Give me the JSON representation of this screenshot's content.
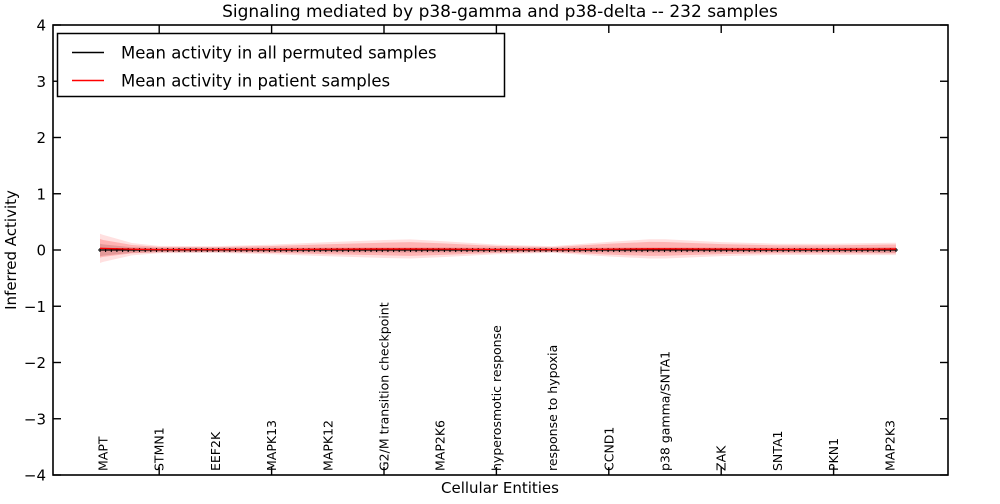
{
  "chart_data": {
    "type": "line",
    "title": "Signaling mediated by p38-gamma and p38-delta -- 232 samples",
    "xlabel": "Cellular Entities",
    "ylabel": "Inferred Activity",
    "ylim": [
      -4,
      4
    ],
    "yticks": [
      4,
      3,
      2,
      1,
      0,
      -1,
      -2,
      -3,
      -4
    ],
    "ytick_labels": [
      "4",
      "3",
      "2",
      "1",
      "0",
      "−1",
      "−2",
      "−3",
      "−4"
    ],
    "categories": [
      "MAPT",
      "STMN1",
      "EEF2K",
      "MAPK13",
      "MAPK12",
      "G2/M transition checkpoint",
      "MAP2K6",
      "hyperosmotic response",
      "response to hypoxia",
      "CCND1",
      "p38 gamma/SNTA1",
      "ZAK",
      "SNTA1",
      "PKN1",
      "MAP2K3"
    ],
    "legend": {
      "position": "upper-left",
      "entries": [
        {
          "label": "Mean activity in all permuted samples",
          "color": "#000000"
        },
        {
          "label": "Mean activity in patient samples",
          "color": "#ff0000"
        }
      ]
    },
    "grid": false,
    "n_points": 142,
    "marker": "plus",
    "series": [
      {
        "name": "Mean activity in all permuted samples",
        "color": "#000000",
        "approx_mean_activity": 0.0
      },
      {
        "name": "Mean activity in patient samples",
        "color": "#ff0000",
        "approx_mean_activity": 0.02
      }
    ],
    "band_profile": {
      "comment": "t = fraction along x data range; halfwidths and means in Inferred Activity units",
      "t": [
        0.0,
        0.004,
        0.04,
        0.074,
        0.144,
        0.216,
        0.286,
        0.357,
        0.39,
        0.427,
        0.499,
        0.569,
        0.639,
        0.69,
        0.71,
        0.781,
        0.852,
        0.922,
        0.992,
        1.0
      ],
      "black_mean": [
        0,
        0,
        0,
        0,
        0,
        0,
        0,
        0,
        0,
        0,
        0,
        0,
        0,
        0,
        0,
        0,
        0,
        0,
        0,
        0
      ],
      "red_mean": [
        0.03,
        0.028,
        0.015,
        0.008,
        0.008,
        0.01,
        0.014,
        0.018,
        0.018,
        0.016,
        0.01,
        0.008,
        0.014,
        0.02,
        0.02,
        0.016,
        0.012,
        0.012,
        0.018,
        0.018
      ],
      "red_halfwidth": [
        0.165,
        0.15,
        0.075,
        0.047,
        0.044,
        0.062,
        0.089,
        0.113,
        0.122,
        0.104,
        0.062,
        0.044,
        0.096,
        0.124,
        0.122,
        0.089,
        0.071,
        0.071,
        0.08,
        0.08
      ],
      "red_outer_halfwidth": [
        0.26,
        0.24,
        0.11,
        0.065,
        0.06,
        0.085,
        0.125,
        0.16,
        0.17,
        0.145,
        0.085,
        0.06,
        0.13,
        0.17,
        0.17,
        0.125,
        0.1,
        0.1,
        0.11,
        0.11
      ],
      "gray_halfwidth": [
        0.11,
        0.1,
        0.05,
        0.04,
        0.04,
        0.04,
        0.042,
        0.045,
        0.045,
        0.044,
        0.04,
        0.038,
        0.042,
        0.045,
        0.045,
        0.042,
        0.04,
        0.04,
        0.048,
        0.048
      ]
    },
    "colors": {
      "patient_line": "#ff0000",
      "permuted_line": "#000000",
      "patient_band": "rgba(255,0,0,0.20)",
      "patient_band_outer": "rgba(255,0,0,0.12)",
      "permuted_band": "rgba(128,128,128,0.30)",
      "frame": "#000000"
    }
  }
}
